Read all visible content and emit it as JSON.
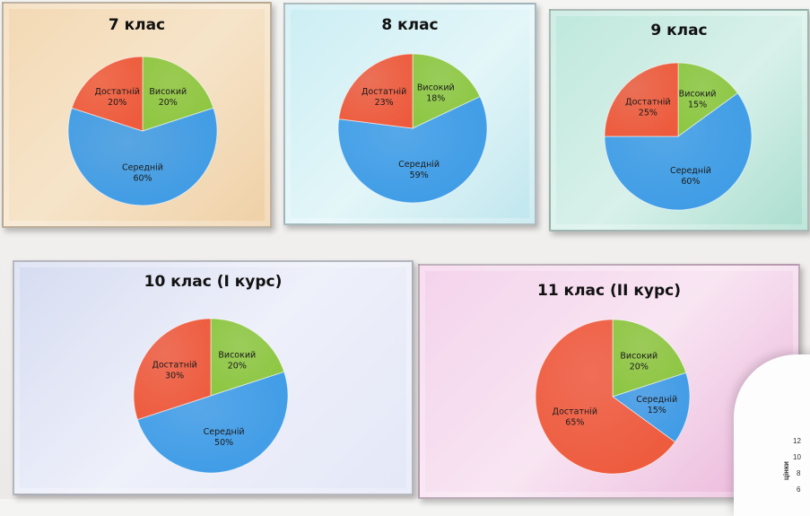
{
  "colors": {
    "green": "#8cc63f",
    "red": "#ee5a3c",
    "blue": "#3d9be6"
  },
  "chart_data": [
    {
      "type": "pie",
      "title": "7 клас",
      "slices": [
        {
          "label": "Високий",
          "value": 20,
          "text": "20%",
          "color": "green"
        },
        {
          "label": "Середній",
          "value": 60,
          "text": "60%",
          "color": "blue"
        },
        {
          "label": "Достатній",
          "value": 20,
          "text": "20%",
          "color": "red"
        }
      ]
    },
    {
      "type": "pie",
      "title": "8 клас",
      "slices": [
        {
          "label": "Високий",
          "value": 18,
          "text": "18%",
          "color": "green"
        },
        {
          "label": "Середній",
          "value": 59,
          "text": "59%",
          "color": "blue"
        },
        {
          "label": "Достатній",
          "value": 23,
          "text": "23%",
          "color": "red"
        }
      ]
    },
    {
      "type": "pie",
      "title": "9 клас",
      "slices": [
        {
          "label": "Високий",
          "value": 15,
          "text": "15%",
          "color": "green"
        },
        {
          "label": "Середній",
          "value": 60,
          "text": "60%",
          "color": "blue"
        },
        {
          "label": "Достатній",
          "value": 25,
          "text": "25%",
          "color": "red"
        }
      ]
    },
    {
      "type": "pie",
      "title": "10 клас (І курс)",
      "slices": [
        {
          "label": "Високий",
          "value": 20,
          "text": "20%",
          "color": "green"
        },
        {
          "label": "Середній",
          "value": 50,
          "text": "50%",
          "color": "blue"
        },
        {
          "label": "Достатній",
          "value": 30,
          "text": "30%",
          "color": "red"
        }
      ]
    },
    {
      "type": "pie",
      "title": "11 клас (ІІ курс)",
      "slices": [
        {
          "label": "Високий",
          "value": 20,
          "text": "20%",
          "color": "green"
        },
        {
          "label": "Середній",
          "value": 15,
          "text": "15%",
          "color": "blue"
        },
        {
          "label": "Достатній",
          "value": 65,
          "text": "65%",
          "color": "red"
        }
      ]
    }
  ],
  "partial_chart": {
    "y_ticks": [
      "12",
      "10",
      "8",
      "6"
    ],
    "axis_label": "цінки"
  }
}
